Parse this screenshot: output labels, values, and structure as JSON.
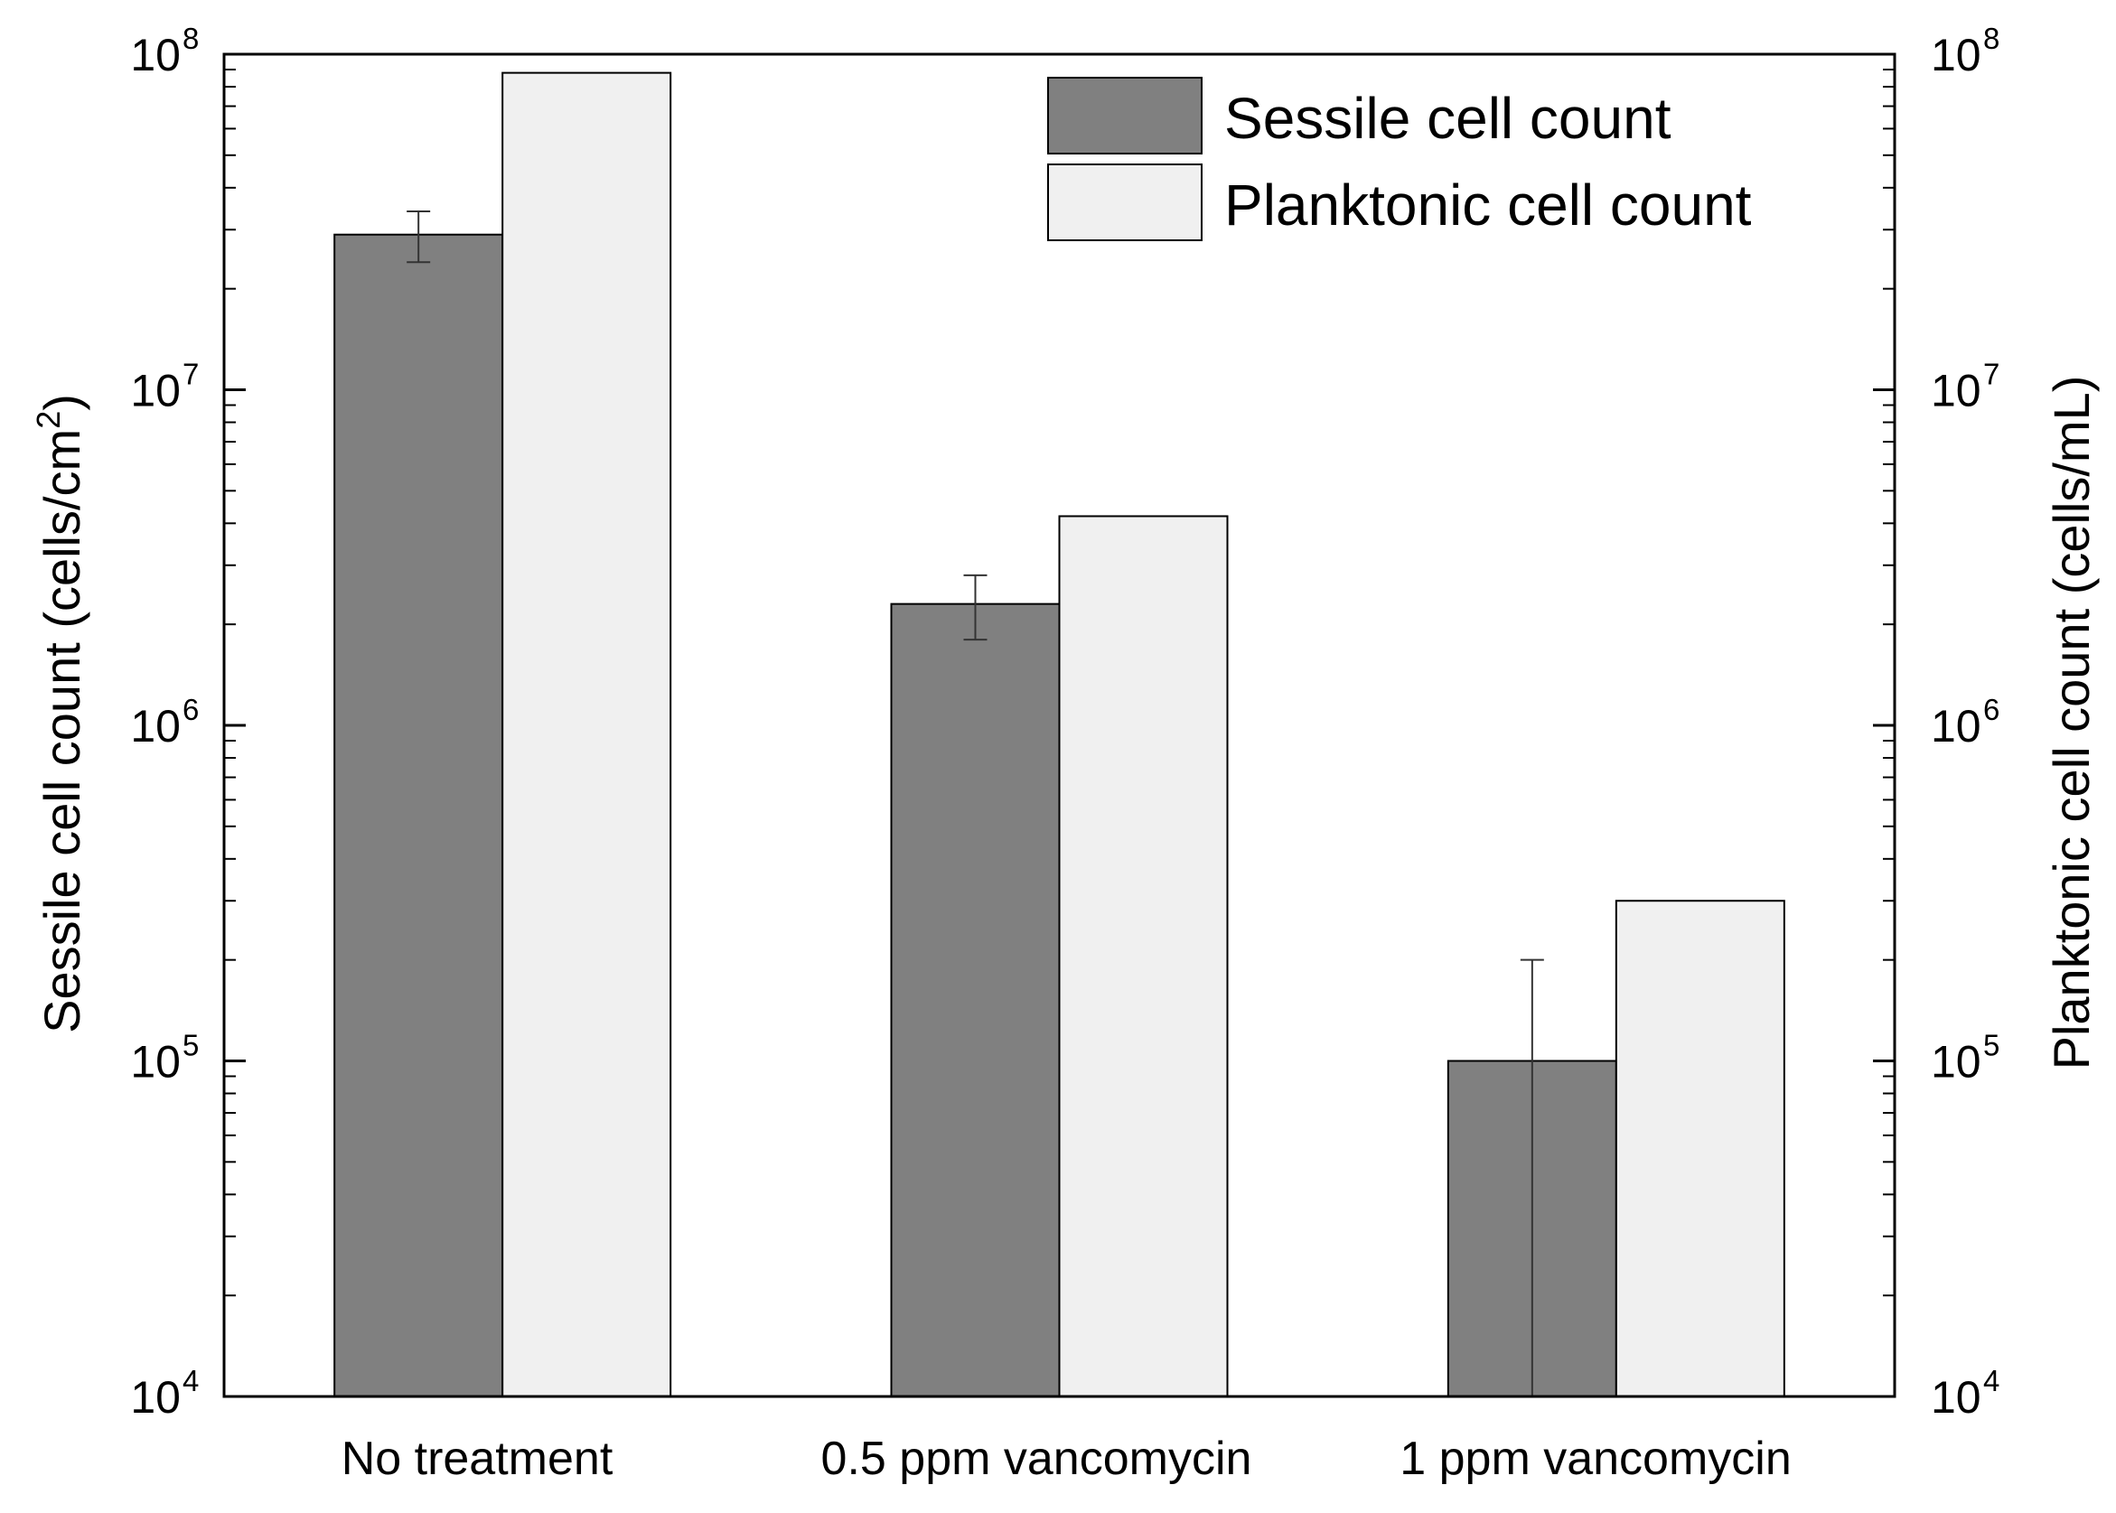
{
  "chart_data": {
    "type": "bar",
    "scale": "log",
    "categories": [
      "No treatment",
      "0.5 ppm vancomycin",
      "1 ppm vancomycin"
    ],
    "series": [
      {
        "name": "Sessile cell count",
        "axis": "left",
        "color": "#808080",
        "values": [
          29000000,
          2300000,
          100000
        ],
        "error_low": [
          24000000,
          1800000,
          10000
        ],
        "error_high": [
          34000000,
          2800000,
          200000
        ]
      },
      {
        "name": "Planktonic cell count",
        "axis": "right",
        "color": "#f0f0f0",
        "values": [
          88000000,
          4200000,
          300000
        ]
      }
    ],
    "ylim": [
      10000,
      100000000
    ],
    "y_ticks": [
      {
        "base": "10",
        "exp": "4"
      },
      {
        "base": "10",
        "exp": "5"
      },
      {
        "base": "10",
        "exp": "6"
      },
      {
        "base": "10",
        "exp": "7"
      },
      {
        "base": "10",
        "exp": "8"
      }
    ],
    "ylabel_left": {
      "main": "Sessile cell count (cells/cm",
      "sup": "2",
      "end": ")"
    },
    "ylabel_right": "Planktonic cell count (cells/mL)",
    "legend_position": "top-right",
    "grid": false
  }
}
